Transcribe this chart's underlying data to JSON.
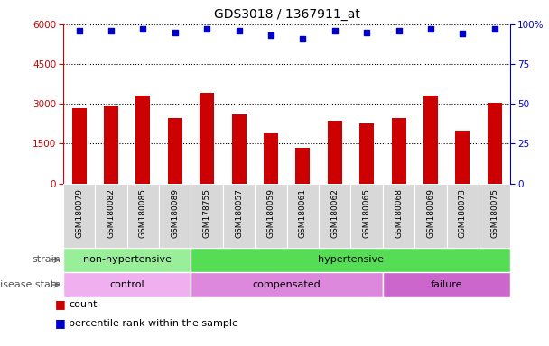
{
  "title": "GDS3018 / 1367911_at",
  "samples": [
    "GSM180079",
    "GSM180082",
    "GSM180085",
    "GSM180089",
    "GSM178755",
    "GSM180057",
    "GSM180059",
    "GSM180061",
    "GSM180062",
    "GSM180065",
    "GSM180068",
    "GSM180069",
    "GSM180073",
    "GSM180075"
  ],
  "counts": [
    2850,
    2900,
    3300,
    2450,
    3400,
    2600,
    1900,
    1350,
    2350,
    2250,
    2450,
    3300,
    2000,
    3050
  ],
  "percentiles": [
    96,
    96,
    97,
    95,
    97,
    96,
    93,
    91,
    96,
    95,
    96,
    97,
    94,
    97
  ],
  "bar_color": "#cc0000",
  "dot_color": "#0000cc",
  "ylim_left": [
    0,
    6000
  ],
  "ylim_right": [
    0,
    100
  ],
  "yticks_left": [
    0,
    1500,
    3000,
    4500,
    6000
  ],
  "yticks_right": [
    0,
    25,
    50,
    75,
    100
  ],
  "strain_groups": [
    {
      "label": "non-hypertensive",
      "start": 0,
      "end": 4,
      "color": "#99ee99"
    },
    {
      "label": "hypertensive",
      "start": 4,
      "end": 14,
      "color": "#55dd55"
    }
  ],
  "disease_groups": [
    {
      "label": "control",
      "start": 0,
      "end": 4,
      "color": "#f0b0f0"
    },
    {
      "label": "compensated",
      "start": 4,
      "end": 10,
      "color": "#dd88dd"
    },
    {
      "label": "failure",
      "start": 10,
      "end": 14,
      "color": "#cc66cc"
    }
  ],
  "legend_count_label": "count",
  "legend_percentile_label": "percentile rank within the sample",
  "bg_color": "#ffffff",
  "tick_area_bg": "#d8d8d8"
}
